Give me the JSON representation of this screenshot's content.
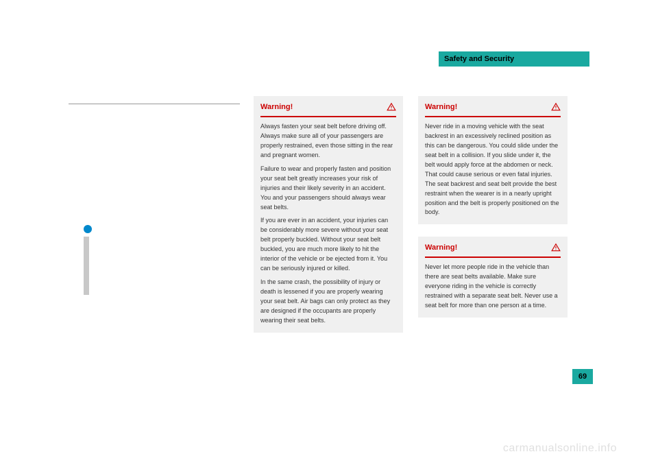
{
  "header": {
    "title": "Safety and Security"
  },
  "page_number": "69",
  "watermark": "carmanualsonline.info",
  "warnings": {
    "center": {
      "title": "Warning!",
      "paras": [
        "Always fasten your seat belt before driving off. Always make sure all of your passengers are properly restrained, even those sitting in the rear and pregnant women.",
        "Failure to wear and properly fasten and position your seat belt greatly increases your risk of injuries and their likely severity in an accident. You and your passengers should always wear seat belts.",
        "If you are ever in an accident, your injuries can be considerably more severe without your seat belt properly buckled. Without your seat belt buckled, you are much more likely to hit the interior of the vehicle or be ejected from it. You can be seriously injured or killed.",
        "In the same crash, the possibility of injury or death is lessened if you are properly wearing your seat belt. Air bags can only protect as they are designed if the occupants are properly wearing their seat belts."
      ]
    },
    "right1": {
      "title": "Warning!",
      "paras": [
        "Never ride in a moving vehicle with the seat backrest in an excessively reclined position as this can be dangerous. You could slide under the seat belt in a collision. If you slide under it, the belt would apply force at the abdomen or neck. That could cause serious or even fatal injuries. The seat backrest and seat belt provide the best restraint when the wearer is in a nearly upright position and the belt is properly positioned on the body."
      ]
    },
    "right2": {
      "title": "Warning!",
      "paras": [
        "Never let more people ride in the vehicle than there are seat belts available. Make sure everyone riding in the vehicle is correctly restrained with a separate seat belt. Never use a seat belt for more than one person at a time."
      ]
    }
  },
  "colors": {
    "teal": "#1aa9a0",
    "red": "#cc0000",
    "grey_box": "#f0f0f0",
    "blue_dot": "#0088cc"
  }
}
